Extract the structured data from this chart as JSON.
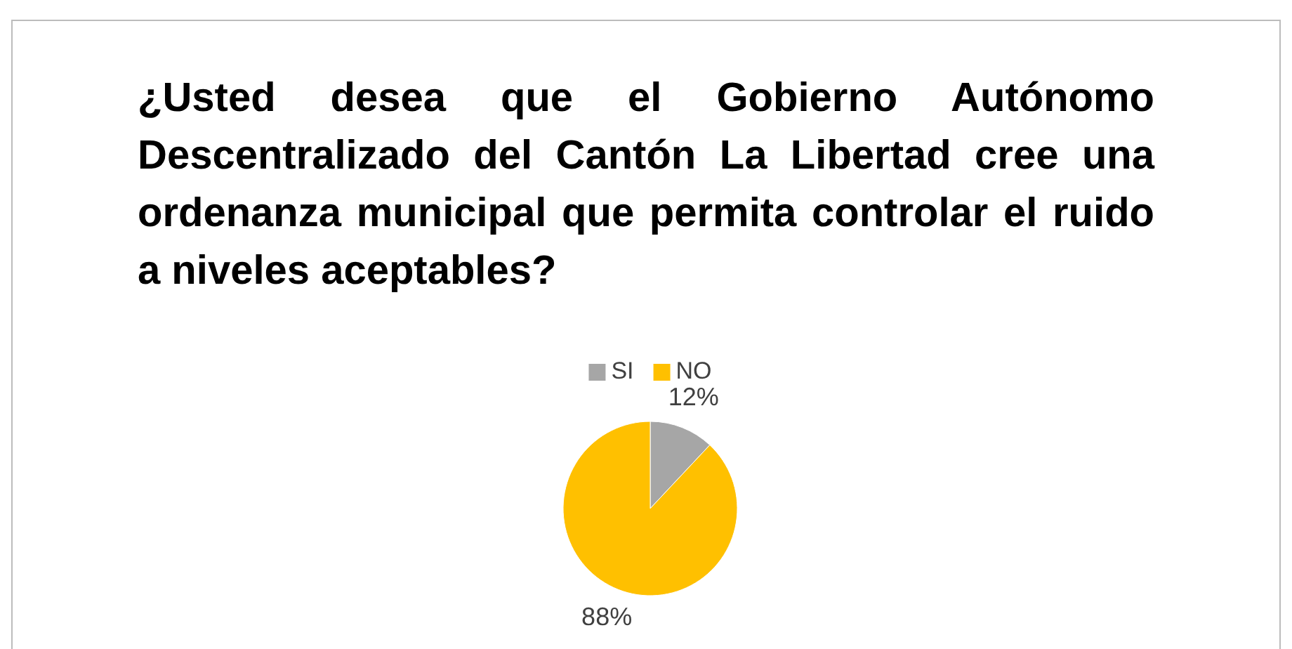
{
  "chart_data": {
    "type": "pie",
    "title": "¿Usted desea que el Gobierno Autónomo Descentralizado del Cantón La Libertad cree una ordenanza municipal que permita controlar el ruido a niveles aceptables?",
    "categories": [
      "SI",
      "NO"
    ],
    "values": [
      12,
      88
    ],
    "colors": [
      "#a6a6a6",
      "#ffc000"
    ],
    "value_labels": [
      "12%",
      "88%"
    ],
    "legend": "top"
  }
}
